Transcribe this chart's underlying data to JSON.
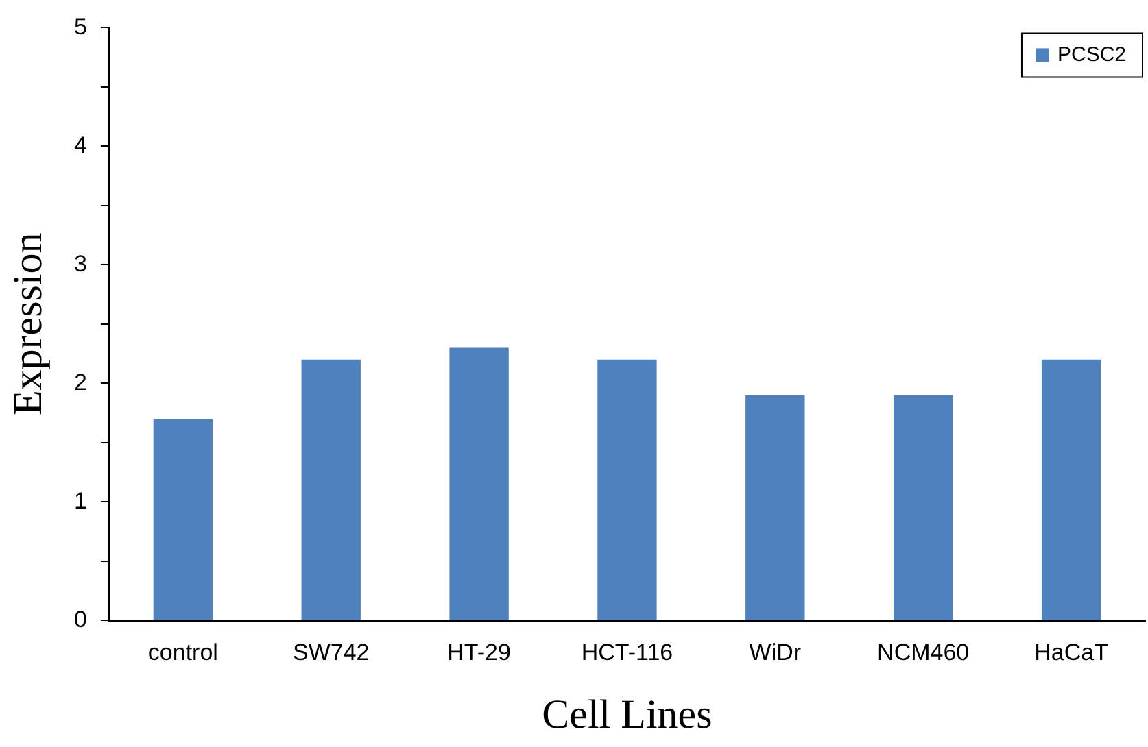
{
  "chart_data": {
    "type": "bar",
    "xlabel": "Cell Lines",
    "ylabel": "Expression",
    "categories": [
      "control",
      "SW742",
      "HT-29",
      "HCT-116",
      "WiDr",
      "NCM460",
      "HaCaT"
    ],
    "series": [
      {
        "name": "PCSC2",
        "color": "#4f81bd",
        "values": [
          1.7,
          2.2,
          2.3,
          2.2,
          1.9,
          1.9,
          2.2
        ]
      }
    ],
    "ylim": [
      0,
      5
    ],
    "yticks": [
      0,
      {
        "value": 0.5,
        "label": null
      },
      1,
      {
        "value": 1.5,
        "label": null
      },
      2,
      {
        "value": 2.5,
        "label": null
      },
      3,
      {
        "value": 3.5,
        "label": null
      },
      4,
      {
        "value": 4.5,
        "label": null
      },
      5
    ],
    "legend": "top right"
  }
}
